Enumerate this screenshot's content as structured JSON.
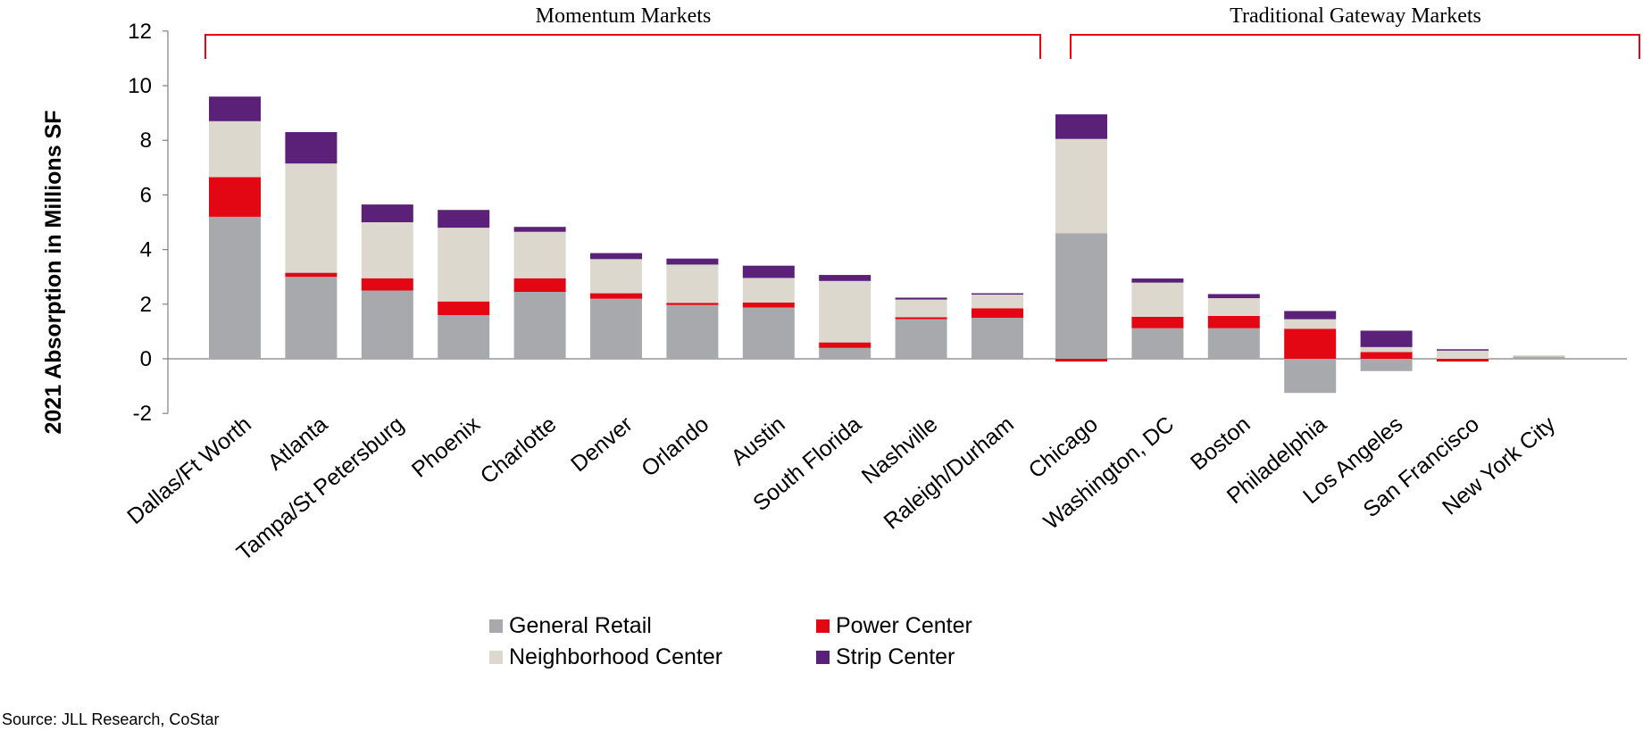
{
  "chart_data": {
    "type": "bar",
    "stacked": true,
    "ylabel": "2021 Absorption in Millions SF",
    "ylim": [
      -2,
      12
    ],
    "yticks": [
      -2,
      0,
      2,
      4,
      6,
      8,
      10,
      12
    ],
    "legend_position": "bottom-center",
    "groups": [
      {
        "label": "Momentum Markets",
        "categories": [
          "Dallas/Ft Worth",
          "Atlanta",
          "Tampa/St Petersburg",
          "Phoenix",
          "Charlotte",
          "Denver",
          "Orlando",
          "Austin",
          "South Florida",
          "Nashville",
          "Raleigh/Durham"
        ]
      },
      {
        "label": "Traditional Gateway Markets",
        "categories": [
          "Chicago",
          "Washington, DC",
          "Boston",
          "Philadelphia",
          "Los Angeles",
          "San Francisco",
          "New York City"
        ]
      }
    ],
    "categories": [
      "Dallas/Ft Worth",
      "Atlanta",
      "Tampa/St Petersburg",
      "Phoenix",
      "Charlotte",
      "Denver",
      "Orlando",
      "Austin",
      "South Florida",
      "Nashville",
      "Raleigh/Durham",
      "Chicago",
      "Washington, DC",
      "Boston",
      "Philadelphia",
      "Los Angeles",
      "San Francisco",
      "New York City"
    ],
    "series": [
      {
        "name": "General Retail",
        "color": "#a7a9ac",
        "values": [
          5.2,
          3.0,
          2.5,
          1.6,
          2.45,
          2.2,
          1.97,
          1.88,
          0.4,
          1.45,
          1.5,
          4.6,
          1.12,
          1.12,
          -1.25,
          -0.45,
          0.0,
          0.08
        ]
      },
      {
        "name": "Power Center",
        "color": "#e30613",
        "values": [
          1.45,
          0.15,
          0.45,
          0.5,
          0.5,
          0.2,
          0.08,
          0.18,
          0.2,
          0.07,
          0.35,
          -0.1,
          0.42,
          0.45,
          1.1,
          0.25,
          -0.1,
          0.0
        ]
      },
      {
        "name": "Neighborhood Center",
        "color": "#ddd8ce",
        "values": [
          2.05,
          4.0,
          2.05,
          2.7,
          1.7,
          1.25,
          1.4,
          0.9,
          2.25,
          0.65,
          0.5,
          3.45,
          1.25,
          0.65,
          0.35,
          0.18,
          0.3,
          0.05
        ]
      },
      {
        "name": "Strip Center",
        "color": "#5b2078",
        "values": [
          0.9,
          1.15,
          0.65,
          0.65,
          0.18,
          0.22,
          0.22,
          0.45,
          0.22,
          0.07,
          0.05,
          0.9,
          0.15,
          0.15,
          0.3,
          0.6,
          0.05,
          0.0
        ]
      }
    ]
  },
  "source": "Source: JLL Research, CoStar"
}
